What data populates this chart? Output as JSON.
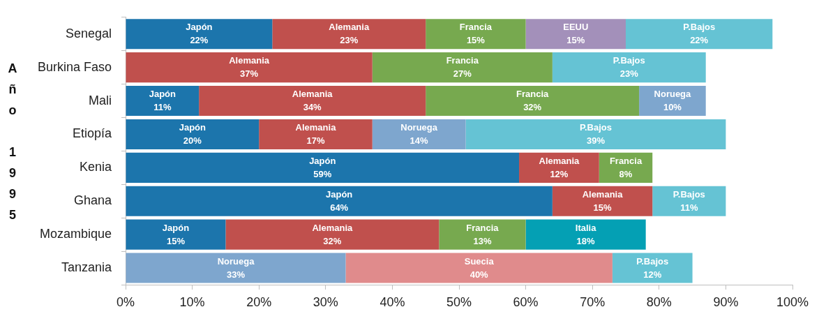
{
  "chart_data": {
    "type": "bar",
    "orientation": "horizontal",
    "stacked": true,
    "ylabel": "Año 1995",
    "categories": [
      "Senegal",
      "Burkina Faso",
      "Mali",
      "Etiopía",
      "Kenia",
      "Ghana",
      "Mozambique",
      "Tanzania"
    ],
    "xlim": [
      0,
      100
    ],
    "xticks": [
      {
        "value": 0,
        "label": "0%"
      },
      {
        "value": 10,
        "label": "10%"
      },
      {
        "value": 20,
        "label": "20%"
      },
      {
        "value": 30,
        "label": "30%"
      },
      {
        "value": 40,
        "label": "40%"
      },
      {
        "value": 50,
        "label": "50%"
      },
      {
        "value": 60,
        "label": "60%"
      },
      {
        "value": 70,
        "label": "70%"
      },
      {
        "value": 80,
        "label": "80%"
      },
      {
        "value": 90,
        "label": "90%"
      },
      {
        "value": 100,
        "label": "100%"
      }
    ],
    "series": [
      {
        "name": "Japón",
        "color": "#1c75ac",
        "values": [
          22,
          null,
          11,
          20,
          59,
          64,
          15,
          null
        ],
        "value_labels": [
          "22%",
          null,
          "11%",
          "20%",
          "59%",
          "64%",
          "15%",
          null
        ]
      },
      {
        "name": "Alemania",
        "color": "#c0504d",
        "values": [
          23,
          37,
          34,
          17,
          12,
          15,
          32,
          null
        ],
        "value_labels": [
          "23%",
          "37%",
          "34%",
          "17%",
          "12%",
          "15%",
          "32%",
          null
        ]
      },
      {
        "name": "Francia",
        "color": "#77a94f",
        "values": [
          15,
          27,
          32,
          null,
          8,
          null,
          13,
          null
        ],
        "value_labels": [
          "15%",
          "27%",
          "32%",
          null,
          "8%",
          null,
          "13%",
          null
        ]
      },
      {
        "name": "EEUU",
        "color": "#a390ba",
        "values": [
          15,
          null,
          null,
          null,
          null,
          null,
          null,
          null
        ],
        "value_labels": [
          "15%",
          null,
          null,
          null,
          null,
          null,
          null,
          null
        ]
      },
      {
        "name": "Noruega",
        "color": "#7ea6ce",
        "values": [
          null,
          null,
          10,
          14,
          null,
          null,
          null,
          33
        ],
        "value_labels": [
          null,
          null,
          "10%",
          "14%",
          null,
          null,
          null,
          "33%"
        ]
      },
      {
        "name": "Italia",
        "color": "#04a0b4",
        "values": [
          null,
          null,
          null,
          null,
          null,
          null,
          18,
          null
        ],
        "value_labels": [
          null,
          null,
          null,
          null,
          null,
          null,
          "18%",
          null
        ]
      },
      {
        "name": "Suecia",
        "color": "#e08b8c",
        "values": [
          null,
          null,
          null,
          null,
          null,
          null,
          null,
          40
        ],
        "value_labels": [
          null,
          null,
          null,
          null,
          null,
          null,
          null,
          "40%"
        ]
      },
      {
        "name": "P.Bajos",
        "color": "#65c3d4",
        "values": [
          22,
          23,
          null,
          39,
          null,
          11,
          null,
          12
        ],
        "value_labels": [
          "22%",
          "23%",
          null,
          "39%",
          null,
          "11%",
          null,
          "12%"
        ]
      }
    ]
  }
}
